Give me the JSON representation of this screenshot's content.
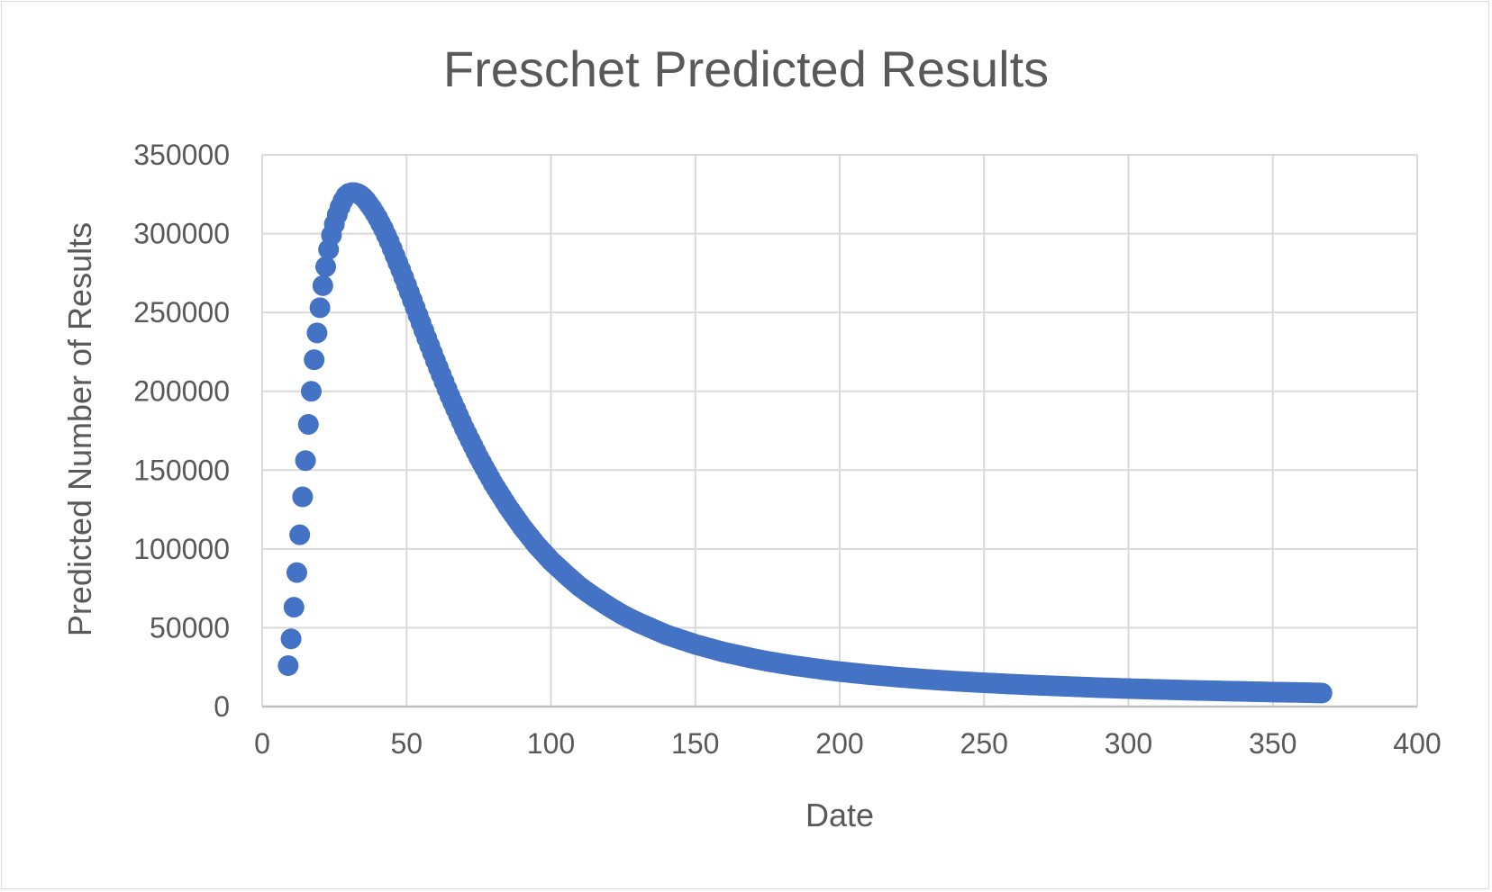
{
  "chart_data": {
    "type": "scatter",
    "title": "Freschet Predicted Results",
    "xlabel": "Date",
    "ylabel": "Predicted Number of Results",
    "xlim": [
      0,
      400
    ],
    "ylim": [
      0,
      350000
    ],
    "x_ticks": [
      "0",
      "50",
      "100",
      "150",
      "200",
      "250",
      "300",
      "350",
      "400"
    ],
    "y_ticks": [
      "0",
      "50000",
      "100000",
      "150000",
      "200000",
      "250000",
      "300000",
      "350000"
    ],
    "grid": true,
    "legend": "none",
    "marker_color": "#4472C4",
    "series": [
      {
        "values": [
          [
            9,
            26000
          ],
          [
            10,
            43000
          ],
          [
            11,
            63000
          ],
          [
            12,
            85000
          ],
          [
            13,
            109000
          ],
          [
            14,
            133000
          ],
          [
            15,
            156000
          ],
          [
            16,
            179000
          ],
          [
            17,
            200000
          ],
          [
            18,
            220000
          ],
          [
            19,
            237000
          ],
          [
            20,
            253000
          ],
          [
            21,
            267000
          ],
          [
            22,
            279000
          ],
          [
            23,
            290000
          ],
          [
            24,
            299000
          ],
          [
            25,
            306000
          ],
          [
            26,
            312000
          ],
          [
            27,
            317000
          ],
          [
            28,
            321000
          ],
          [
            29,
            324000
          ],
          [
            30,
            325500
          ],
          [
            31,
            326000
          ],
          [
            32,
            326000
          ],
          [
            33,
            325500
          ],
          [
            34,
            324500
          ],
          [
            35,
            323000
          ],
          [
            36,
            321000
          ],
          [
            37,
            318500
          ],
          [
            38,
            316000
          ],
          [
            39,
            313000
          ],
          [
            40,
            310000
          ],
          [
            42,
            303000
          ],
          [
            44,
            295000
          ],
          [
            46,
            286000
          ],
          [
            48,
            277000
          ],
          [
            50,
            267500
          ],
          [
            53,
            253000
          ],
          [
            56,
            238500
          ],
          [
            60,
            219500
          ],
          [
            65,
            197000
          ],
          [
            70,
            176500
          ],
          [
            75,
            158000
          ],
          [
            80,
            141500
          ],
          [
            85,
            127000
          ],
          [
            90,
            114000
          ],
          [
            95,
            102500
          ],
          [
            100,
            92500
          ],
          [
            105,
            84000
          ],
          [
            110,
            76000
          ],
          [
            115,
            69500
          ],
          [
            120,
            63500
          ],
          [
            125,
            58000
          ],
          [
            130,
            53500
          ],
          [
            135,
            49500
          ],
          [
            140,
            45500
          ],
          [
            145,
            42500
          ],
          [
            150,
            39500
          ],
          [
            155,
            37000
          ],
          [
            160,
            34500
          ],
          [
            165,
            32500
          ],
          [
            170,
            30500
          ],
          [
            175,
            28700
          ],
          [
            180,
            27200
          ],
          [
            185,
            25800
          ],
          [
            190,
            24500
          ],
          [
            195,
            23300
          ],
          [
            200,
            22200
          ],
          [
            210,
            20300
          ],
          [
            220,
            18700
          ],
          [
            230,
            17300
          ],
          [
            240,
            16100
          ],
          [
            250,
            15100
          ],
          [
            260,
            14200
          ],
          [
            270,
            13400
          ],
          [
            280,
            12700
          ],
          [
            290,
            12000
          ],
          [
            300,
            11400
          ],
          [
            310,
            10900
          ],
          [
            320,
            10400
          ],
          [
            330,
            10000
          ],
          [
            340,
            9600
          ],
          [
            350,
            9200
          ],
          [
            360,
            8900
          ],
          [
            367,
            8600
          ]
        ]
      }
    ]
  }
}
